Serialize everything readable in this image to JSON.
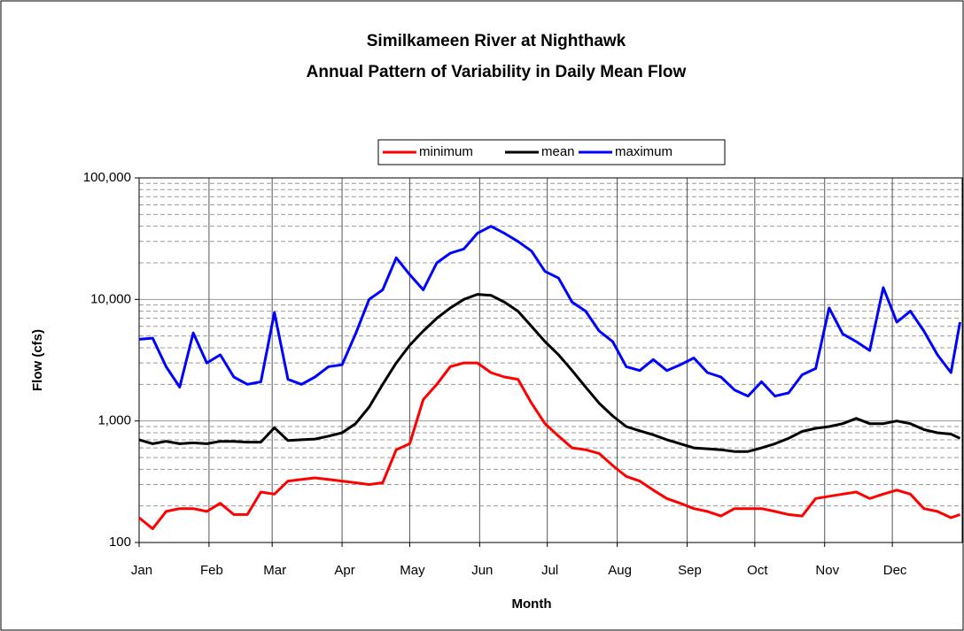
{
  "chart_data": {
    "type": "line",
    "title": [
      "Similkameen River at Nighthawk",
      "Annual Pattern of Variability in Daily Mean Flow"
    ],
    "x_label": "Month",
    "y_label": "Flow (cfs)",
    "log_scale_y": true,
    "grid": true,
    "legend": "top",
    "xlim": [
      1,
      366
    ],
    "xticks": [
      {
        "value": 1,
        "label": "Jan"
      },
      {
        "value": 32,
        "label": "Feb"
      },
      {
        "value": 60,
        "label": "Mar"
      },
      {
        "value": 91,
        "label": "Apr"
      },
      {
        "value": 121,
        "label": "May"
      },
      {
        "value": 152,
        "label": "Jun"
      },
      {
        "value": 182,
        "label": "Jul"
      },
      {
        "value": 213,
        "label": "Aug"
      },
      {
        "value": 244,
        "label": "Sep"
      },
      {
        "value": 274,
        "label": "Oct"
      },
      {
        "value": 305,
        "label": "Nov"
      },
      {
        "value": 335,
        "label": "Dec"
      }
    ],
    "ylim": [
      100,
      100000
    ],
    "yticks": [
      100,
      {
        "value": 1000,
        "label": "1,000"
      },
      {
        "value": 10000,
        "label": "10,000"
      },
      {
        "value": 100000,
        "label": "100,000"
      }
    ],
    "x": [
      1,
      7,
      13,
      19,
      25,
      31,
      37,
      43,
      49,
      55,
      61,
      67,
      73,
      79,
      85,
      91,
      97,
      103,
      109,
      115,
      121,
      127,
      133,
      139,
      145,
      151,
      157,
      163,
      169,
      175,
      181,
      187,
      193,
      199,
      205,
      211,
      217,
      223,
      229,
      235,
      241,
      247,
      253,
      259,
      265,
      271,
      277,
      283,
      289,
      295,
      301,
      307,
      313,
      319,
      325,
      331,
      337,
      343,
      349,
      355,
      361,
      365
    ],
    "series": [
      {
        "name": "minimum",
        "color": "#ff0000",
        "values": [
          160,
          130,
          180,
          190,
          190,
          180,
          210,
          170,
          170,
          260,
          250,
          320,
          330,
          340,
          330,
          320,
          310,
          300,
          310,
          580,
          650,
          1500,
          2000,
          2800,
          3000,
          3000,
          2500,
          2300,
          2200,
          1400,
          950,
          750,
          600,
          580,
          540,
          430,
          350,
          320,
          270,
          230,
          210,
          190,
          180,
          165,
          190,
          190,
          190,
          180,
          170,
          165,
          230,
          240,
          250,
          260,
          230,
          250,
          270,
          250,
          190,
          180,
          160,
          170
        ]
      },
      {
        "name": "mean",
        "color": "#000000",
        "values": [
          700,
          650,
          680,
          650,
          660,
          650,
          680,
          680,
          670,
          670,
          880,
          690,
          700,
          710,
          750,
          800,
          950,
          1300,
          2000,
          3000,
          4200,
          5500,
          7000,
          8500,
          10000,
          11000,
          10800,
          9500,
          8000,
          6000,
          4500,
          3500,
          2600,
          1900,
          1400,
          1100,
          900,
          830,
          770,
          700,
          650,
          600,
          590,
          580,
          560,
          560,
          600,
          650,
          720,
          820,
          870,
          900,
          950,
          1050,
          950,
          950,
          1000,
          950,
          850,
          800,
          780,
          720
        ]
      },
      {
        "name": "maximum",
        "color": "#0000ff",
        "values": [
          4700,
          4800,
          2800,
          1900,
          5300,
          3000,
          3500,
          2300,
          2000,
          2100,
          7800,
          2200,
          2000,
          2300,
          2800,
          2900,
          5200,
          10000,
          12000,
          22000,
          16000,
          12000,
          20000,
          24000,
          26000,
          35000,
          40000,
          35000,
          30000,
          25000,
          17000,
          15000,
          9500,
          8000,
          5500,
          4500,
          2800,
          2600,
          3200,
          2600,
          2900,
          3300,
          2500,
          2300,
          1800,
          1600,
          2100,
          1600,
          1700,
          2400,
          2700,
          8500,
          5200,
          4500,
          3800,
          12500,
          6500,
          8000,
          5500,
          3500,
          2500,
          6500
        ]
      }
    ]
  }
}
